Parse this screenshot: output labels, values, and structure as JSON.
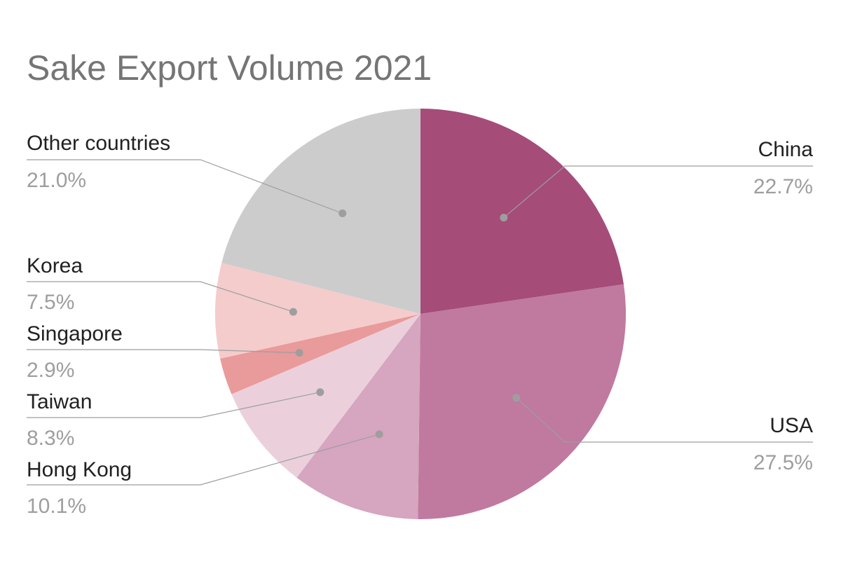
{
  "chart_data": {
    "type": "pie",
    "title": "Sake Export Volume 2021",
    "slices": [
      {
        "label": "China",
        "value": 22.7,
        "value_label": "22.7%",
        "color": "#a54c79"
      },
      {
        "label": "USA",
        "value": 27.5,
        "value_label": "27.5%",
        "color": "#c0799f"
      },
      {
        "label": "Hong Kong",
        "value": 10.1,
        "value_label": "10.1%",
        "color": "#d6a5c0"
      },
      {
        "label": "Taiwan",
        "value": 8.3,
        "value_label": "8.3%",
        "color": "#ebd0dc"
      },
      {
        "label": "Singapore",
        "value": 2.9,
        "value_label": "2.9%",
        "color": "#e99a9a"
      },
      {
        "label": "Korea",
        "value": 7.5,
        "value_label": "7.5%",
        "color": "#f4cccc"
      },
      {
        "label": "Other countries",
        "value": 21.0,
        "value_label": "21.0%",
        "color": "#cccccc"
      }
    ],
    "start_angle": "top",
    "direction": "clockwise",
    "legend": "none"
  }
}
